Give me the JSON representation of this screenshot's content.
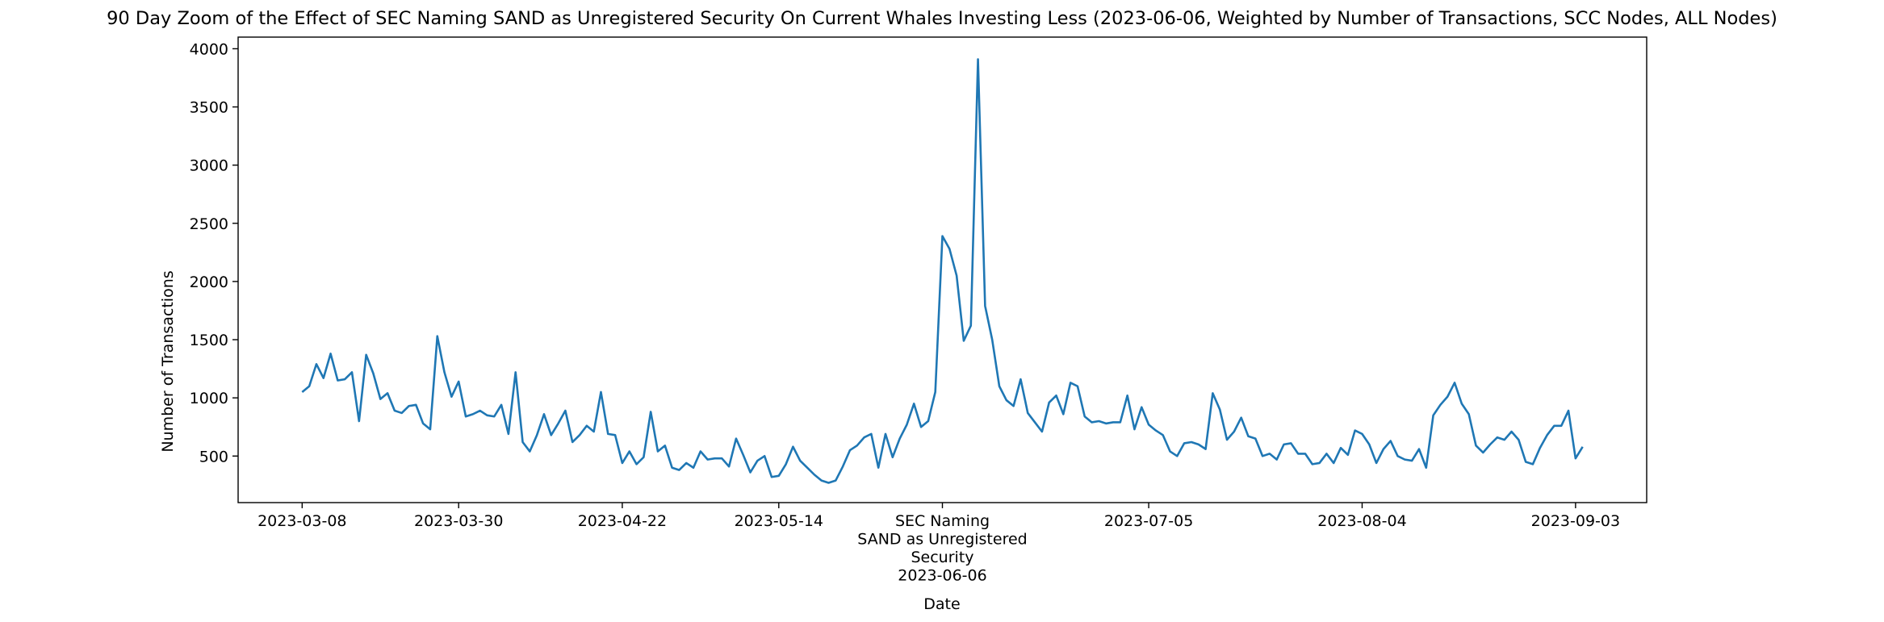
{
  "chart_data": {
    "type": "line",
    "title": "90 Day Zoom of the Effect of SEC Naming SAND as Unregistered Security On Current Whales Investing Less (2023-06-06, Weighted by Number of Transactions, SCC Nodes, ALL Nodes)",
    "xlabel": "Date",
    "ylabel": "Number of Transactions",
    "ylim": [
      100,
      4100
    ],
    "yticks": [
      500,
      1000,
      1500,
      2000,
      2500,
      3000,
      3500,
      4000
    ],
    "grid": false,
    "line_color": "#1f77b4",
    "x_start": "2023-03-08",
    "xticks": [
      {
        "date": "2023-03-08",
        "lines": [
          "2023-03-08"
        ]
      },
      {
        "date": "2023-03-30",
        "lines": [
          "2023-03-30"
        ]
      },
      {
        "date": "2023-04-22",
        "lines": [
          "2023-04-22"
        ]
      },
      {
        "date": "2023-05-14",
        "lines": [
          "2023-05-14"
        ]
      },
      {
        "date": "2023-06-06",
        "lines": [
          "SEC Naming",
          "SAND as Unregistered",
          "Security",
          "2023-06-06"
        ]
      },
      {
        "date": "2023-07-05",
        "lines": [
          "2023-07-05"
        ]
      },
      {
        "date": "2023-08-04",
        "lines": [
          "2023-08-04"
        ]
      },
      {
        "date": "2023-09-03",
        "lines": [
          "2023-09-03"
        ]
      }
    ],
    "series": [
      {
        "values": [
          1050,
          1100,
          1290,
          1170,
          1380,
          1150,
          1160,
          1220,
          800,
          1370,
          1210,
          990,
          1040,
          890,
          870,
          930,
          940,
          780,
          730,
          1530,
          1220,
          1010,
          1140,
          840,
          860,
          890,
          850,
          840,
          940,
          690,
          1220,
          620,
          540,
          680,
          860,
          680,
          780,
          890,
          620,
          680,
          760,
          710,
          1050,
          690,
          680,
          440,
          540,
          430,
          490,
          880,
          540,
          590,
          400,
          380,
          440,
          400,
          540,
          470,
          480,
          480,
          410,
          650,
          510,
          360,
          460,
          500,
          320,
          330,
          430,
          580,
          460,
          400,
          340,
          290,
          270,
          290,
          410,
          550,
          590,
          660,
          690,
          400,
          690,
          490,
          650,
          770,
          950,
          750,
          800,
          1050,
          2390,
          2280,
          2050,
          1490,
          1620,
          3910,
          1790,
          1500,
          1100,
          980,
          930,
          1160,
          870,
          790,
          710,
          960,
          1020,
          860,
          1130,
          1100,
          840,
          790,
          800,
          780,
          790,
          790,
          1020,
          730,
          920,
          770,
          720,
          680,
          540,
          500,
          610,
          620,
          600,
          560,
          1040,
          900,
          640,
          710,
          830,
          670,
          650,
          500,
          520,
          470,
          600,
          610,
          520,
          520,
          430,
          440,
          520,
          440,
          570,
          510,
          720,
          690,
          600,
          440,
          560,
          630,
          500,
          470,
          460,
          560,
          400,
          850,
          940,
          1010,
          1130,
          950,
          860,
          590,
          530,
          600,
          660,
          640,
          710,
          640,
          450,
          430,
          570,
          680,
          760,
          760,
          890,
          480,
          580
        ]
      }
    ]
  }
}
